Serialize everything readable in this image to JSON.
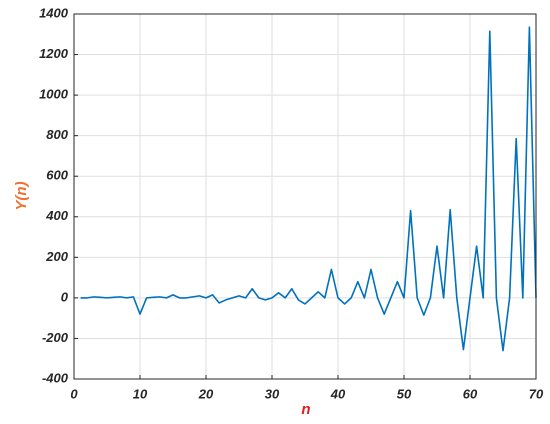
{
  "chart_data": {
    "type": "line",
    "xlabel": "n",
    "ylabel": "Y(n)",
    "x": [
      1,
      2,
      3,
      4,
      5,
      6,
      7,
      8,
      9,
      10,
      11,
      12,
      13,
      14,
      15,
      16,
      17,
      18,
      19,
      20,
      21,
      22,
      23,
      24,
      25,
      26,
      27,
      28,
      29,
      30,
      31,
      32,
      33,
      34,
      35,
      36,
      37,
      38,
      39,
      40,
      41,
      42,
      43,
      44,
      45,
      46,
      47,
      48,
      49,
      50,
      51,
      52,
      53,
      54,
      55,
      56,
      57,
      58,
      59,
      60,
      61,
      62,
      63,
      64,
      65,
      66,
      67,
      68,
      69,
      70
    ],
    "series": [
      {
        "color": "#0072bd",
        "values": [
          0,
          0,
          5,
          3,
          0,
          3,
          5,
          0,
          5,
          -80,
          0,
          3,
          5,
          0,
          15,
          0,
          0,
          5,
          10,
          0,
          15,
          -25,
          -10,
          0,
          10,
          0,
          45,
          0,
          -10,
          0,
          25,
          0,
          45,
          -10,
          -30,
          0,
          30,
          0,
          140,
          0,
          -30,
          0,
          80,
          0,
          140,
          0,
          -80,
          0,
          80,
          0,
          430,
          0,
          -85,
          0,
          255,
          0,
          435,
          0,
          -255,
          0,
          255,
          0,
          1315,
          0,
          -260,
          0,
          785,
          0,
          1335,
          0
        ]
      }
    ],
    "xlim": [
      0,
      70
    ],
    "xticks": [
      0,
      10,
      20,
      30,
      40,
      50,
      60,
      70
    ],
    "ylim": [
      -400,
      1400
    ],
    "yticks": [
      -400,
      -200,
      0,
      200,
      400,
      600,
      800,
      1000,
      1200,
      1400
    ],
    "grid": true
  }
}
